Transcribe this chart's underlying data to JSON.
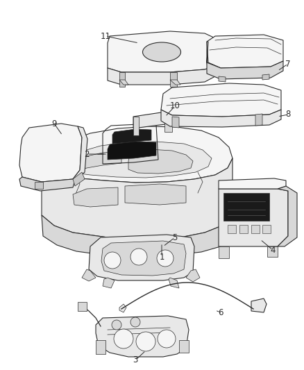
{
  "background_color": "#ffffff",
  "fig_width": 4.38,
  "fig_height": 5.33,
  "dpi": 100,
  "line_color": "#2a2a2a",
  "label_color": "#2a2a2a",
  "label_fontsize": 8.5,
  "face_light": "#f5f5f5",
  "face_mid": "#e8e8e8",
  "face_dark": "#d8d8d8",
  "face_shadow": "#c8c8c8"
}
